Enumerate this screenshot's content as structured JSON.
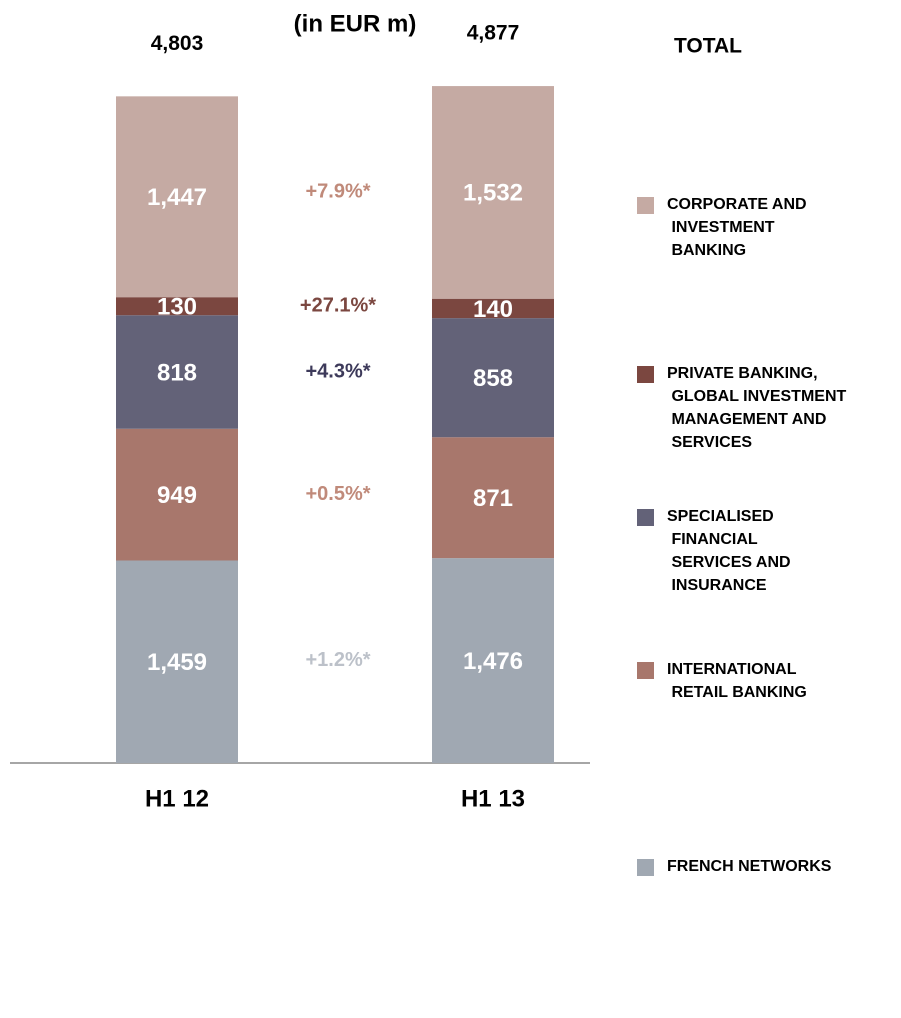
{
  "chart_data": {
    "type": "stacked_bar",
    "subtitle": "(in EUR m)",
    "total_label": "TOTAL",
    "categories": [
      "H1 12",
      "H1 13"
    ],
    "totals": {
      "values": [
        4803,
        4877
      ],
      "value_labels": [
        "4,803",
        "4,877"
      ]
    },
    "series": [
      {
        "name": "FRENCH NETWORKS",
        "color": "#a0a8b2",
        "values": [
          1459,
          1476
        ],
        "value_labels": [
          "1,459",
          "1,476"
        ],
        "change": "+1.2%*",
        "change_color": "#bcc1c9"
      },
      {
        "name": "INTERNATIONAL RETAIL BANKING",
        "color": "#a8776c",
        "values": [
          949,
          871
        ],
        "value_labels": [
          "949",
          "871"
        ],
        "change": "+0.5%*",
        "change_color": "#c08a7a"
      },
      {
        "name": "SPECIALISED FINANCIAL SERVICES AND INSURANCE",
        "color": "#636278",
        "values": [
          818,
          858
        ],
        "value_labels": [
          "818",
          "858"
        ],
        "change": "+4.3%*",
        "change_color": "#3d3a5a"
      },
      {
        "name": "PRIVATE BANKING, GLOBAL INVESTMENT MANAGEMENT AND SERVICES",
        "color": "#7b4740",
        "values": [
          130,
          140
        ],
        "value_labels": [
          "130",
          "140"
        ],
        "change": "+27.1%*",
        "change_color": "#7b4740"
      },
      {
        "name": "CORPORATE AND INVESTMENT BANKING",
        "color": "#c5aaa3",
        "values": [
          1447,
          1532
        ],
        "value_labels": [
          "1,447",
          "1,532"
        ],
        "change": "+7.9%*",
        "change_color": "#c08a7a"
      }
    ]
  }
}
